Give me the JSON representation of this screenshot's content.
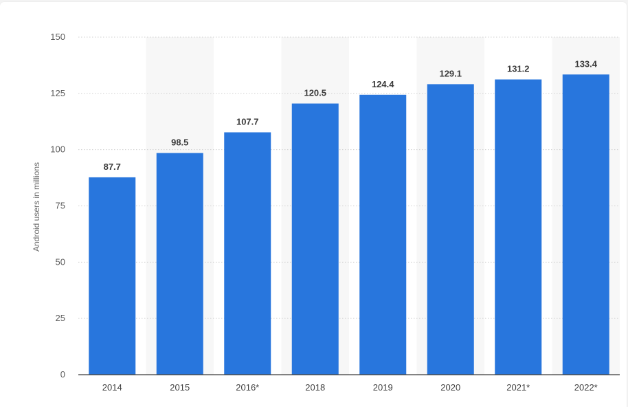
{
  "chart_data": {
    "type": "bar",
    "categories": [
      "2014",
      "2015",
      "2016*",
      "2018",
      "2019",
      "2020",
      "2021*",
      "2022*"
    ],
    "series": [
      {
        "values": [
          87.7,
          98.5,
          107.7,
          120.5,
          124.4,
          129.1,
          131.2,
          133.4
        ]
      }
    ],
    "value_labels": [
      "87.7",
      "98.5",
      "107.7",
      "120.5",
      "124.4",
      "129.1",
      "131.2",
      "133.4"
    ],
    "ylabel": "Android users in millions",
    "ylim": [
      0,
      150
    ],
    "yticks": [
      "0",
      "25",
      "50",
      "75",
      "100",
      "125",
      "150"
    ],
    "grid": true,
    "alternating_band_background": true,
    "colors": {
      "bar": "#2876dd",
      "band": "#f7f7f7",
      "grid": "#cfcfcf",
      "axis": "#3a3a3a"
    }
  }
}
